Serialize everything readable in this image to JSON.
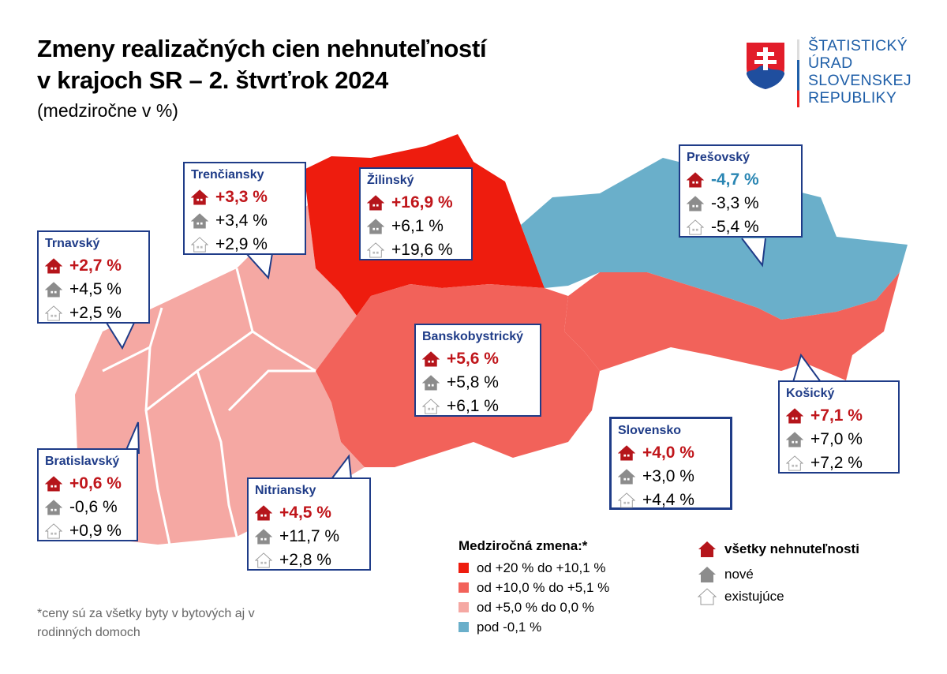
{
  "header": {
    "title_line1": "Zmeny realizačných cien nehnuteľností",
    "title_line2": "v krajoch SR – 2. štvrťrok 2024",
    "subtitle": "(medziročne v %)"
  },
  "logo": {
    "line1": "ŠTATISTICKÝ",
    "line2": "ÚRAD",
    "line3": "SLOVENSKEJ",
    "line4": "REPUBLIKY"
  },
  "colors": {
    "cat1": "#ee1c0e",
    "cat2": "#f2625a",
    "cat3": "#f5a8a3",
    "cat4": "#6aafca",
    "border": "#1f3c88"
  },
  "regions": [
    {
      "name": "Trenčiansky",
      "all": "+3,3 %",
      "new": "+3,4 %",
      "existing": "+2,9 %",
      "category": "cat3"
    },
    {
      "name": "Žilinský",
      "all": "+16,9 %",
      "new": "+6,1 %",
      "existing": "+19,6 %",
      "category": "cat1"
    },
    {
      "name": "Trnavský",
      "all": "+2,7 %",
      "new": "+4,5 %",
      "existing": "+2,5 %",
      "category": "cat3"
    },
    {
      "name": "Prešovský",
      "all": "-4,7 %",
      "new": "-3,3 %",
      "existing": "-5,4 %",
      "category": "cat4"
    },
    {
      "name": "Banskobystrický",
      "all": "+5,6 %",
      "new": "+5,8 %",
      "existing": "+6,1 %",
      "category": "cat2"
    },
    {
      "name": "Bratislavský",
      "all": "+0,6 %",
      "new": "-0,6 %",
      "existing": "+0,9 %",
      "category": "cat3"
    },
    {
      "name": "Nitriansky",
      "all": "+4,5 %",
      "new": "+11,7 %",
      "existing": "+2,8 %",
      "category": "cat3"
    },
    {
      "name": "Slovensko",
      "all": "+4,0 %",
      "new": "+3,0 %",
      "existing": "+4,4 %"
    },
    {
      "name": "Košický",
      "all": "+7,1 %",
      "new": "+7,0 %",
      "existing": "+7,2 %",
      "category": "cat2"
    }
  ],
  "legend": {
    "title": "Medziročná zmena:*",
    "items": [
      {
        "label": "od +20 % do +10,1 %",
        "color": "#ee1c0e"
      },
      {
        "label": "od +10,0 % do +5,1 %",
        "color": "#f2625a"
      },
      {
        "label": "od +5,0 % do 0,0 %",
        "color": "#f5a8a3"
      },
      {
        "label": "pod -0,1 %",
        "color": "#6aafca"
      }
    ],
    "all": "všetky nehnuteľnosti",
    "new": "nové",
    "existing": "existujúce"
  },
  "footnote": "*ceny sú za všetky byty v bytových aj v rodinných domoch"
}
